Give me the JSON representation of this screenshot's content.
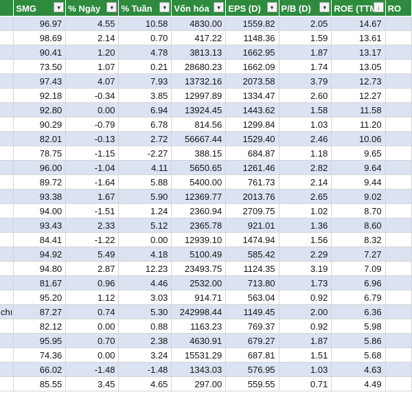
{
  "headers": [
    {
      "label": "",
      "filter": false
    },
    {
      "label": "SMG",
      "filter": true,
      "sort": ""
    },
    {
      "label": "% Ngày",
      "filter": true,
      "sort": ""
    },
    {
      "label": "% Tuần",
      "filter": true,
      "sort": ""
    },
    {
      "label": "Vốn hóa",
      "filter": true,
      "sort": ""
    },
    {
      "label": "EPS (D)",
      "filter": true,
      "sort": ""
    },
    {
      "label": "P/B (D)",
      "filter": true,
      "sort": ""
    },
    {
      "label": "ROE (TTM)",
      "filter": true,
      "sort": "descending"
    },
    {
      "label": "RO",
      "filter": false
    }
  ],
  "rows": [
    [
      "",
      "96.97",
      "4.55",
      "10.58",
      "4830.00",
      "1559.82",
      "2.05",
      "14.67",
      ""
    ],
    [
      "",
      "98.69",
      "2.14",
      "0.70",
      "417.22",
      "1148.36",
      "1.59",
      "13.61",
      ""
    ],
    [
      "",
      "90.41",
      "1.20",
      "4.78",
      "3813.13",
      "1662.95",
      "1.87",
      "13.17",
      ""
    ],
    [
      "",
      "73.50",
      "1.07",
      "0.21",
      "28680.23",
      "1662.09",
      "1.74",
      "13.05",
      ""
    ],
    [
      "",
      "97.43",
      "4.07",
      "7.93",
      "13732.16",
      "2073.58",
      "3.79",
      "12.73",
      ""
    ],
    [
      "",
      "92.18",
      "-0.34",
      "3.85",
      "12997.89",
      "1334.47",
      "2.60",
      "12.27",
      ""
    ],
    [
      "",
      "92.80",
      "0.00",
      "6.94",
      "13924.45",
      "1443.62",
      "1.58",
      "11.58",
      ""
    ],
    [
      "",
      "90.29",
      "-0.79",
      "6.78",
      "814.56",
      "1299.84",
      "1.03",
      "11.20",
      ""
    ],
    [
      "",
      "82.01",
      "-0.13",
      "2.72",
      "56667.44",
      "1529.40",
      "2.46",
      "10.06",
      ""
    ],
    [
      "",
      "78.75",
      "-1.15",
      "-2.27",
      "388.15",
      "684.87",
      "1.18",
      "9.65",
      ""
    ],
    [
      "",
      "96.00",
      "-1.04",
      "4.11",
      "5650.65",
      "1261.46",
      "2.82",
      "9.64",
      ""
    ],
    [
      "",
      "89.72",
      "-1.64",
      "5.88",
      "5400.00",
      "761.73",
      "2.14",
      "9.44",
      ""
    ],
    [
      "",
      "93.38",
      "1.67",
      "5.90",
      "12369.77",
      "2013.76",
      "2.65",
      "9.02",
      ""
    ],
    [
      "",
      "94.00",
      "-1.51",
      "1.24",
      "2360.94",
      "2709.75",
      "1.02",
      "8.70",
      ""
    ],
    [
      "",
      "93.43",
      "2.33",
      "5.12",
      "2365.78",
      "921.01",
      "1.36",
      "8.60",
      ""
    ],
    [
      "",
      "84.41",
      "-1.22",
      "0.00",
      "12939.10",
      "1474.94",
      "1.56",
      "8.32",
      ""
    ],
    [
      "",
      "94.92",
      "5.49",
      "4.18",
      "5100.49",
      "585.42",
      "2.29",
      "7.27",
      ""
    ],
    [
      "",
      "94.80",
      "2.87",
      "12.23",
      "23493.75",
      "1124.35",
      "3.19",
      "7.09",
      ""
    ],
    [
      "",
      "81.67",
      "0.96",
      "4.46",
      "2532.00",
      "713.80",
      "1.73",
      "6.96",
      ""
    ],
    [
      "",
      "95.20",
      "1.12",
      "3.03",
      "914.71",
      "563.04",
      "0.92",
      "6.79",
      ""
    ],
    [
      "chı",
      "87.27",
      "0.74",
      "5.30",
      "242998.44",
      "1149.45",
      "2.00",
      "6.36",
      ""
    ],
    [
      "",
      "82.12",
      "0.00",
      "0.88",
      "1163.23",
      "769.37",
      "0.92",
      "5.98",
      ""
    ],
    [
      "",
      "95.95",
      "0.70",
      "2.38",
      "4630.91",
      "679.27",
      "1.87",
      "5.86",
      ""
    ],
    [
      "",
      "74.36",
      "0.00",
      "3.24",
      "15531.29",
      "687.81",
      "1.51",
      "5.68",
      ""
    ],
    [
      "",
      "66.02",
      "-1.48",
      "-1.48",
      "1343.03",
      "576.95",
      "1.03",
      "4.63",
      ""
    ],
    [
      "",
      "85.55",
      "3.45",
      "4.65",
      "297.00",
      "559.55",
      "0.71",
      "4.49",
      ""
    ]
  ],
  "colors": {
    "header_bg": "#2e8b3e",
    "band_bg": "#dbe3f3",
    "grid": "#d4d4d4"
  },
  "icons": {
    "filter": "filter-dropdown-icon",
    "sort_desc": "sort-descending-icon"
  }
}
